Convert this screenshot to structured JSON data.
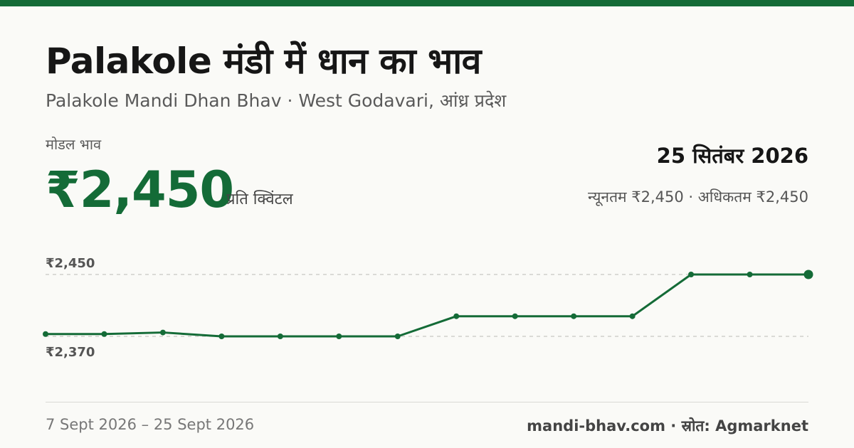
{
  "header": {
    "title": "Palakole मंडी में धान का भाव",
    "subtitle": "Palakole Mandi Dhan Bhav · West Godavari, आंध्र प्रदेश"
  },
  "price": {
    "label": "मोडल भाव",
    "value": "₹2,450",
    "unit": "प्रति क्विंटल"
  },
  "summary": {
    "date": "25 सितंबर 2026",
    "minmax": "न्यूनतम ₹2,450 · अधिकतम ₹2,450"
  },
  "footer": {
    "range": "7 Sept 2026 – 25 Sept 2026",
    "source": "mandi-bhav.com · स्रोत: Agmarknet"
  },
  "colors": {
    "accent": "#146b37",
    "gridline": "#c8c8c2",
    "label": "#555555"
  },
  "chart_data": {
    "type": "line",
    "x_range": [
      "7 Sept 2026",
      "25 Sept 2026"
    ],
    "ylim": [
      2370,
      2450
    ],
    "y_tick_labels": [
      "₹2,450",
      "₹2,370"
    ],
    "y_ticks": [
      2450,
      2370
    ],
    "grid": "dashed at y ticks",
    "series": [
      {
        "values": [
          2373,
          2373,
          2375,
          2370,
          2370,
          2370,
          2370,
          2396,
          2396,
          2396,
          2396,
          2450,
          2450,
          2450
        ]
      }
    ],
    "last_point_highlighted": true
  }
}
